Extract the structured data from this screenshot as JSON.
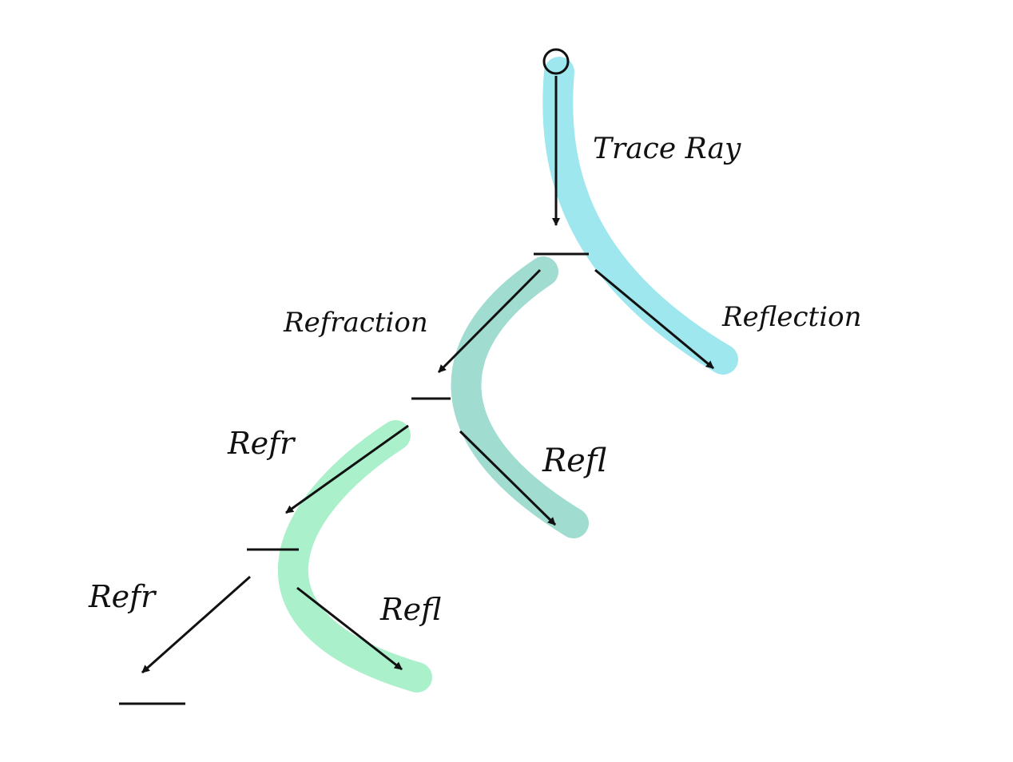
{
  "colors": {
    "background": "#ffffff",
    "ink": "#111111",
    "highlight_primary": "#9fe7ee",
    "highlight_secondary": "#a0dccf",
    "highlight_tertiary": "#aaf0cb"
  },
  "labels": {
    "trace_ray": "Trace Ray",
    "reflection": "Reflection",
    "refraction": "Refraction",
    "refl_level2": "Refl",
    "refr_level2": "Refr",
    "refl_level3": "Refl",
    "refr_level3": "Refr"
  }
}
